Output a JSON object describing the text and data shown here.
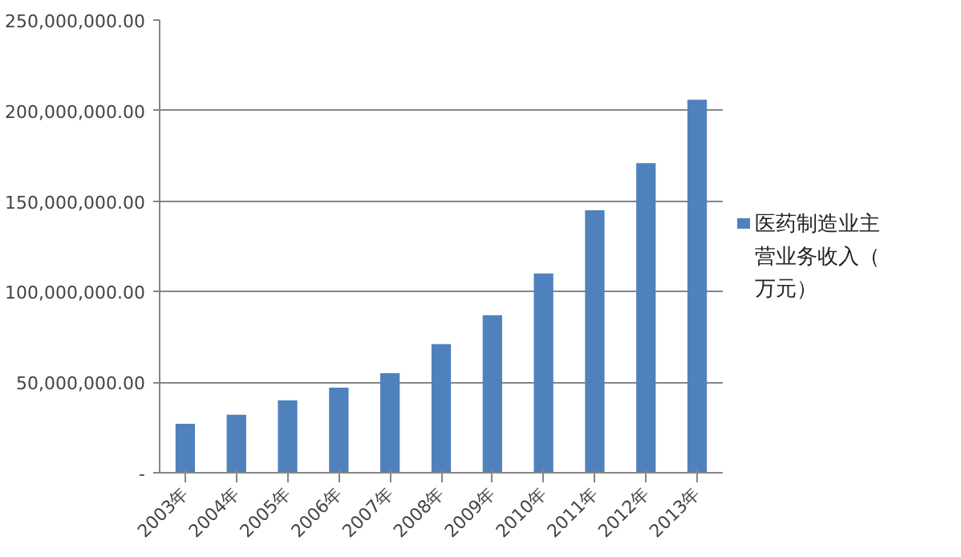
{
  "chart_data": {
    "type": "bar",
    "categories": [
      "2003年",
      "2004年",
      "2005年",
      "2006年",
      "2007年",
      "2008年",
      "2009年",
      "2010年",
      "2011年",
      "2012年",
      "2013年"
    ],
    "series": [
      {
        "name": "医药制造业主营业务收入（万元）",
        "color": "#4f81bd",
        "values": [
          27000000,
          32000000,
          40000000,
          47000000,
          55000000,
          71000000,
          87000000,
          110000000,
          145000000,
          171000000,
          206000000
        ]
      }
    ],
    "ylim": [
      0,
      250000000
    ],
    "yticks": [
      {
        "value": 0,
        "label": "-"
      },
      {
        "value": 50000000,
        "label": "50,000,000.00"
      },
      {
        "value": 100000000,
        "label": "100,000,000.00"
      },
      {
        "value": 150000000,
        "label": "150,000,000.00"
      },
      {
        "value": 200000000,
        "label": "200,000,000.00"
      },
      {
        "value": 250000000,
        "label": "250,000,000.00"
      }
    ],
    "grid": "y",
    "legend": "right"
  }
}
